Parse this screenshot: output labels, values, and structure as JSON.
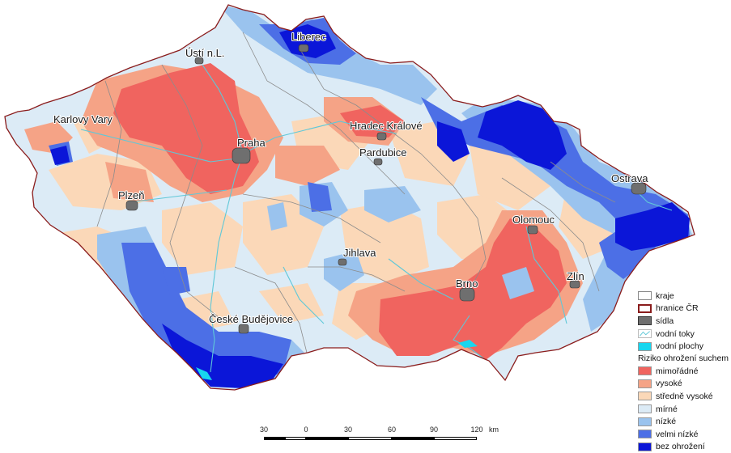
{
  "cities": [
    {
      "id": "liberec",
      "label": "Liberec"
    },
    {
      "id": "usti",
      "label": "Ústí n.L."
    },
    {
      "id": "karlovy-vary",
      "label": "Karlovy Vary"
    },
    {
      "id": "hradec",
      "label": "Hradec Králové"
    },
    {
      "id": "praha",
      "label": "Praha"
    },
    {
      "id": "pardubice",
      "label": "Pardubice"
    },
    {
      "id": "ostrava",
      "label": "Ostrava"
    },
    {
      "id": "plzen",
      "label": "Plzeň"
    },
    {
      "id": "olomouc",
      "label": "Olomouc"
    },
    {
      "id": "jihlava",
      "label": "Jihlava"
    },
    {
      "id": "zlin",
      "label": "Zlín"
    },
    {
      "id": "brno",
      "label": "Brno"
    },
    {
      "id": "ceske-budejovice",
      "label": "České Budějovice"
    }
  ],
  "legend": {
    "layers": [
      {
        "label": "kraje",
        "symbol": "white-box"
      },
      {
        "label": "hranice ČR",
        "symbol": "red-outline-box"
      },
      {
        "label": "sídla",
        "symbol": "gray-box"
      },
      {
        "label": "vodní toky",
        "symbol": "river-line"
      },
      {
        "label": "vodní plochy",
        "symbol": "cyan-box"
      }
    ],
    "risk_title": "Riziko ohrožení suchem",
    "risk_classes": [
      {
        "label": "mimořádné",
        "color": "#f0645f"
      },
      {
        "label": "vysoké",
        "color": "#f5a386"
      },
      {
        "label": "středně vysoké",
        "color": "#fbd8b8"
      },
      {
        "label": "mírné",
        "color": "#dcebf6"
      },
      {
        "label": "nízké",
        "color": "#9ac3ee"
      },
      {
        "label": "velmi nízké",
        "color": "#4c6fe6"
      },
      {
        "label": "bez ohrožení",
        "color": "#0b16d8"
      }
    ]
  },
  "scale": {
    "ticks": [
      "30",
      "0",
      "30",
      "60",
      "90",
      "120"
    ],
    "unit": "km"
  },
  "colors": {
    "border": "#8a1c1c",
    "river": "#5fc8d8",
    "water": "#17d6ef",
    "region_boundary": "#8c8c8c",
    "city": "#6f6f6f"
  }
}
